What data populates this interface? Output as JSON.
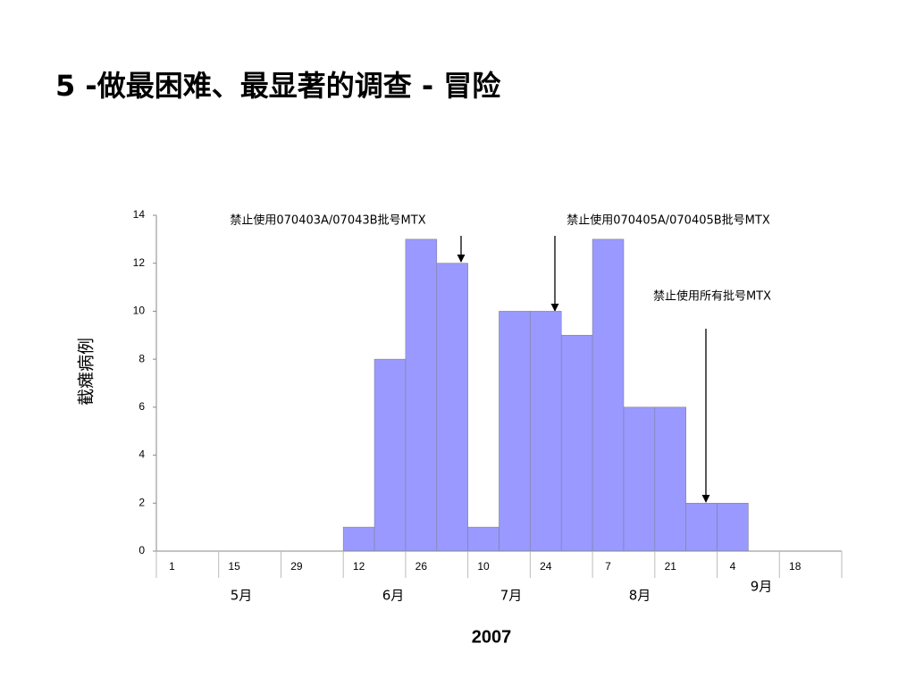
{
  "chart_data": {
    "type": "bar",
    "title": "5 -做最困难、最显著的调查 - 冒险",
    "ylabel": "截瘫病例",
    "categories": [
      "1",
      null,
      "15",
      null,
      "29",
      null,
      "12",
      null,
      "26",
      null,
      "10",
      null,
      "24",
      null,
      "7",
      null,
      "21",
      null,
      "4",
      null,
      "18",
      null
    ],
    "values": [
      0,
      0,
      0,
      0,
      0,
      0,
      1,
      8,
      13,
      12,
      1,
      10,
      10,
      9,
      13,
      6,
      6,
      2,
      2,
      0,
      0,
      0
    ],
    "color": "#9999ff",
    "ylim": [
      0,
      14
    ],
    "yticks": [
      0,
      2,
      4,
      6,
      8,
      10,
      12,
      14
    ],
    "month_labels": [
      "5月",
      "6月",
      "7月",
      "8月",
      "9月"
    ],
    "year_label": "2007",
    "annotations": [
      "禁止使用070403A/07043B批号MTX",
      "禁止使用070405A/070405B批号MTX",
      "禁止使用所有批号MTX"
    ]
  }
}
